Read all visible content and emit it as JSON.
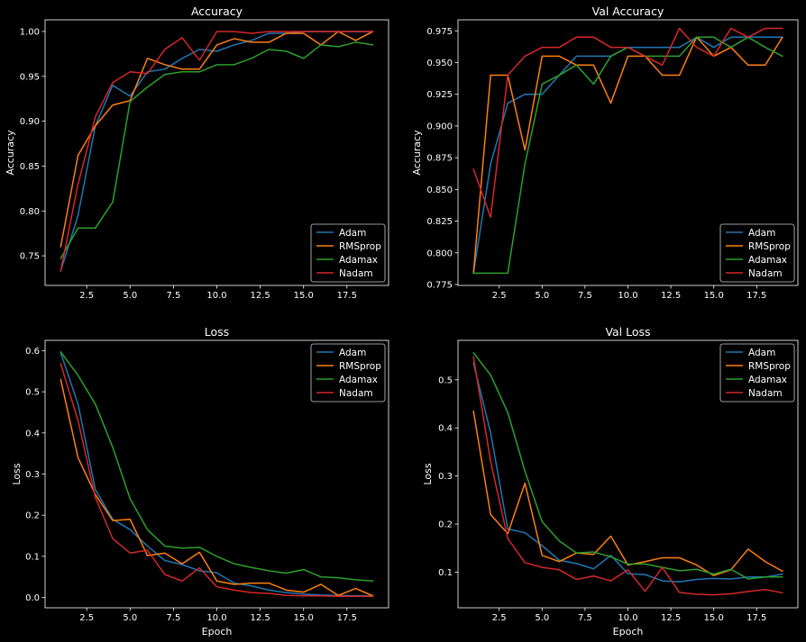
{
  "figure": {
    "background": "#000000",
    "foreground": "#ffffff"
  },
  "chart_data": [
    {
      "type": "line",
      "title": "Accuracy",
      "xlabel": "",
      "ylabel": "Accuracy",
      "xlim": [
        0.1,
        19.9
      ],
      "ylim": [
        0.717,
        1.013
      ],
      "xticks": [
        2.5,
        5.0,
        7.5,
        10.0,
        12.5,
        15.0,
        17.5
      ],
      "yticks": [
        0.75,
        0.8,
        0.85,
        0.9,
        0.95,
        1.0
      ],
      "ytick_decimals": 2,
      "grid": false,
      "legend": "lower right",
      "x": [
        1,
        2,
        3,
        4,
        5,
        6,
        7,
        8,
        9,
        10,
        11,
        12,
        13,
        14,
        15,
        16,
        17,
        18,
        19
      ],
      "series": [
        {
          "name": "Adam",
          "color": "#1f77b4",
          "values": [
            0.733,
            0.795,
            0.895,
            0.94,
            0.928,
            0.955,
            0.958,
            0.97,
            0.98,
            0.978,
            0.985,
            0.99,
            0.998,
            0.998,
            1.0,
            1.0,
            1.0,
            1.0,
            1.0
          ]
        },
        {
          "name": "RMSprop",
          "color": "#ff7f0e",
          "values": [
            0.76,
            0.862,
            0.895,
            0.918,
            0.923,
            0.97,
            0.963,
            0.958,
            0.958,
            0.985,
            0.992,
            0.988,
            0.988,
            0.998,
            0.998,
            0.985,
            1.0,
            0.99,
            1.0
          ]
        },
        {
          "name": "Adamax",
          "color": "#2ca02c",
          "values": [
            0.747,
            0.781,
            0.781,
            0.81,
            0.922,
            0.938,
            0.952,
            0.955,
            0.955,
            0.963,
            0.963,
            0.97,
            0.98,
            0.978,
            0.97,
            0.985,
            0.983,
            0.988,
            0.985
          ]
        },
        {
          "name": "Nadam",
          "color": "#d62728",
          "values": [
            0.733,
            0.83,
            0.905,
            0.943,
            0.955,
            0.953,
            0.98,
            0.993,
            0.968,
            1.0,
            1.0,
            0.998,
            1.0,
            1.0,
            1.0,
            1.0,
            1.0,
            1.0,
            1.0
          ]
        }
      ]
    },
    {
      "type": "line",
      "title": "Val Accuracy",
      "xlabel": "",
      "ylabel": "Accuracy",
      "xlim": [
        0.1,
        19.9
      ],
      "ylim": [
        0.7743,
        0.9837
      ],
      "xticks": [
        2.5,
        5.0,
        7.5,
        10.0,
        12.5,
        15.0,
        17.5
      ],
      "yticks": [
        0.775,
        0.8,
        0.825,
        0.85,
        0.875,
        0.9,
        0.925,
        0.95,
        0.975
      ],
      "ytick_decimals": 3,
      "grid": false,
      "legend": "lower right",
      "x": [
        1,
        2,
        3,
        4,
        5,
        6,
        7,
        8,
        9,
        10,
        11,
        12,
        13,
        14,
        15,
        16,
        17,
        18,
        19
      ],
      "series": [
        {
          "name": "Adam",
          "color": "#1f77b4",
          "values": [
            0.784,
            0.87,
            0.918,
            0.925,
            0.925,
            0.94,
            0.955,
            0.955,
            0.955,
            0.962,
            0.962,
            0.962,
            0.962,
            0.97,
            0.962,
            0.97,
            0.97,
            0.97,
            0.97
          ]
        },
        {
          "name": "RMSprop",
          "color": "#ff7f0e",
          "values": [
            0.784,
            0.94,
            0.94,
            0.881,
            0.955,
            0.955,
            0.948,
            0.948,
            0.918,
            0.955,
            0.955,
            0.94,
            0.94,
            0.97,
            0.955,
            0.962,
            0.948,
            0.948,
            0.97
          ]
        },
        {
          "name": "Adamax",
          "color": "#2ca02c",
          "values": [
            0.784,
            0.784,
            0.784,
            0.87,
            0.933,
            0.94,
            0.948,
            0.933,
            0.955,
            0.962,
            0.955,
            0.955,
            0.955,
            0.97,
            0.97,
            0.962,
            0.97,
            0.962,
            0.955
          ]
        },
        {
          "name": "Nadam",
          "color": "#d62728",
          "values": [
            0.866,
            0.828,
            0.94,
            0.955,
            0.962,
            0.962,
            0.97,
            0.97,
            0.962,
            0.962,
            0.955,
            0.948,
            0.977,
            0.962,
            0.955,
            0.977,
            0.97,
            0.977,
            0.977
          ]
        }
      ]
    },
    {
      "type": "line",
      "title": "Loss",
      "xlabel": "Epoch",
      "ylabel": "Loss",
      "xlim": [
        0.1,
        19.9
      ],
      "ylim": [
        -0.025,
        0.625
      ],
      "xticks": [
        2.5,
        5.0,
        7.5,
        10.0,
        12.5,
        15.0,
        17.5
      ],
      "yticks": [
        0.0,
        0.1,
        0.2,
        0.3,
        0.4,
        0.5,
        0.6
      ],
      "ytick_decimals": 1,
      "grid": false,
      "legend": "upper right",
      "x": [
        1,
        2,
        3,
        4,
        5,
        6,
        7,
        8,
        9,
        10,
        11,
        12,
        13,
        14,
        15,
        16,
        17,
        18,
        19
      ],
      "series": [
        {
          "name": "Adam",
          "color": "#1f77b4",
          "values": [
            0.595,
            0.47,
            0.262,
            0.19,
            0.165,
            0.125,
            0.09,
            0.08,
            0.065,
            0.06,
            0.035,
            0.028,
            0.018,
            0.012,
            0.008,
            0.006,
            0.005,
            0.004,
            0.004
          ]
        },
        {
          "name": "RMSprop",
          "color": "#ff7f0e",
          "values": [
            0.53,
            0.34,
            0.25,
            0.187,
            0.19,
            0.102,
            0.108,
            0.082,
            0.11,
            0.04,
            0.032,
            0.035,
            0.035,
            0.018,
            0.013,
            0.032,
            0.005,
            0.022,
            0.004
          ]
        },
        {
          "name": "Adamax",
          "color": "#2ca02c",
          "values": [
            0.597,
            0.54,
            0.47,
            0.365,
            0.24,
            0.165,
            0.125,
            0.12,
            0.122,
            0.1,
            0.082,
            0.073,
            0.065,
            0.059,
            0.068,
            0.05,
            0.048,
            0.043,
            0.04
          ]
        },
        {
          "name": "Nadam",
          "color": "#d62728",
          "values": [
            0.568,
            0.43,
            0.243,
            0.143,
            0.108,
            0.115,
            0.056,
            0.04,
            0.072,
            0.026,
            0.018,
            0.012,
            0.01,
            0.005,
            0.004,
            0.004,
            0.003,
            0.003,
            0.003
          ]
        }
      ]
    },
    {
      "type": "line",
      "title": "Val Loss",
      "xlabel": "Epoch",
      "ylabel": "Loss",
      "xlim": [
        0.1,
        19.9
      ],
      "ylim": [
        0.026,
        0.582
      ],
      "xticks": [
        2.5,
        5.0,
        7.5,
        10.0,
        12.5,
        15.0,
        17.5
      ],
      "yticks": [
        0.1,
        0.2,
        0.3,
        0.4,
        0.5
      ],
      "ytick_decimals": 1,
      "grid": false,
      "legend": "upper right",
      "x": [
        1,
        2,
        3,
        4,
        5,
        6,
        7,
        8,
        9,
        10,
        11,
        12,
        13,
        14,
        15,
        16,
        17,
        18,
        19
      ],
      "series": [
        {
          "name": "Adam",
          "color": "#1f77b4",
          "values": [
            0.535,
            0.39,
            0.19,
            0.182,
            0.155,
            0.125,
            0.118,
            0.107,
            0.135,
            0.097,
            0.095,
            0.082,
            0.08,
            0.085,
            0.087,
            0.086,
            0.09,
            0.09,
            0.096
          ]
        },
        {
          "name": "RMSprop",
          "color": "#ff7f0e",
          "values": [
            0.435,
            0.22,
            0.18,
            0.285,
            0.135,
            0.122,
            0.14,
            0.137,
            0.175,
            0.115,
            0.122,
            0.13,
            0.13,
            0.115,
            0.093,
            0.105,
            0.148,
            0.122,
            0.102
          ]
        },
        {
          "name": "Adamax",
          "color": "#2ca02c",
          "values": [
            0.556,
            0.51,
            0.432,
            0.31,
            0.205,
            0.165,
            0.14,
            0.142,
            0.132,
            0.117,
            0.117,
            0.11,
            0.103,
            0.106,
            0.096,
            0.106,
            0.086,
            0.09,
            0.09
          ]
        },
        {
          "name": "Nadam",
          "color": "#d62728",
          "values": [
            0.548,
            0.33,
            0.17,
            0.12,
            0.11,
            0.105,
            0.085,
            0.092,
            0.082,
            0.105,
            0.06,
            0.11,
            0.058,
            0.054,
            0.053,
            0.055,
            0.06,
            0.064,
            0.057
          ]
        }
      ]
    }
  ]
}
